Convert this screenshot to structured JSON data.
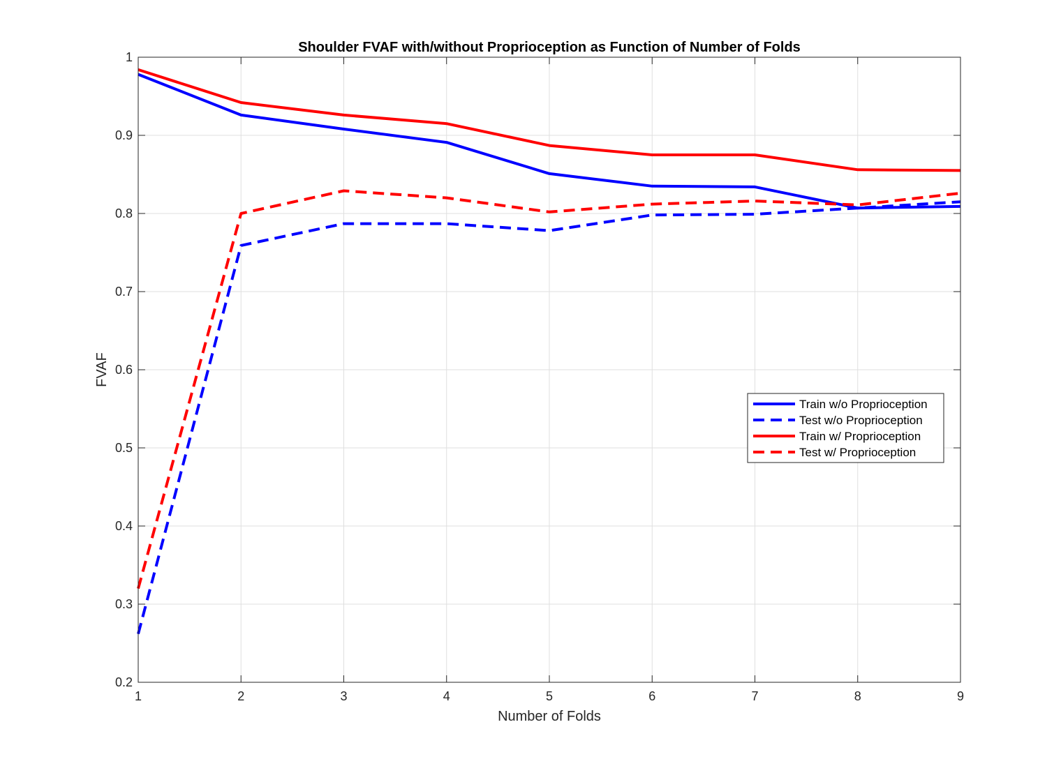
{
  "chart_data": {
    "type": "line",
    "title": "Shoulder FVAF with/without Proprioception as Function of Number of Folds",
    "xlabel": "Number of Folds",
    "ylabel": "FVAF",
    "xlim": [
      1,
      9
    ],
    "ylim": [
      0.2,
      1
    ],
    "x": [
      1,
      2,
      3,
      4,
      5,
      6,
      7,
      8,
      9
    ],
    "xticks": [
      "1",
      "2",
      "3",
      "4",
      "5",
      "6",
      "7",
      "8",
      "9"
    ],
    "yticks": [
      "0.2",
      "0.3",
      "0.4",
      "0.5",
      "0.6",
      "0.7",
      "0.8",
      "0.9",
      "1"
    ],
    "grid": true,
    "legend_position": "center-right",
    "series": [
      {
        "name": "Train w/o Proprioception",
        "color": "#0000ff",
        "style": "solid",
        "values": [
          0.978,
          0.926,
          0.908,
          0.891,
          0.851,
          0.835,
          0.834,
          0.807,
          0.809
        ]
      },
      {
        "name": "Test w/o Proprioception",
        "color": "#0000ff",
        "style": "dashed",
        "values": [
          0.262,
          0.759,
          0.787,
          0.787,
          0.778,
          0.798,
          0.799,
          0.807,
          0.815
        ]
      },
      {
        "name": "Train w/ Proprioception",
        "color": "#ff0000",
        "style": "solid",
        "values": [
          0.984,
          0.942,
          0.926,
          0.915,
          0.887,
          0.875,
          0.875,
          0.856,
          0.855
        ]
      },
      {
        "name": "Test w/ Proprioception",
        "color": "#ff0000",
        "style": "dashed",
        "values": [
          0.32,
          0.8,
          0.829,
          0.82,
          0.802,
          0.812,
          0.816,
          0.811,
          0.826
        ]
      }
    ]
  }
}
